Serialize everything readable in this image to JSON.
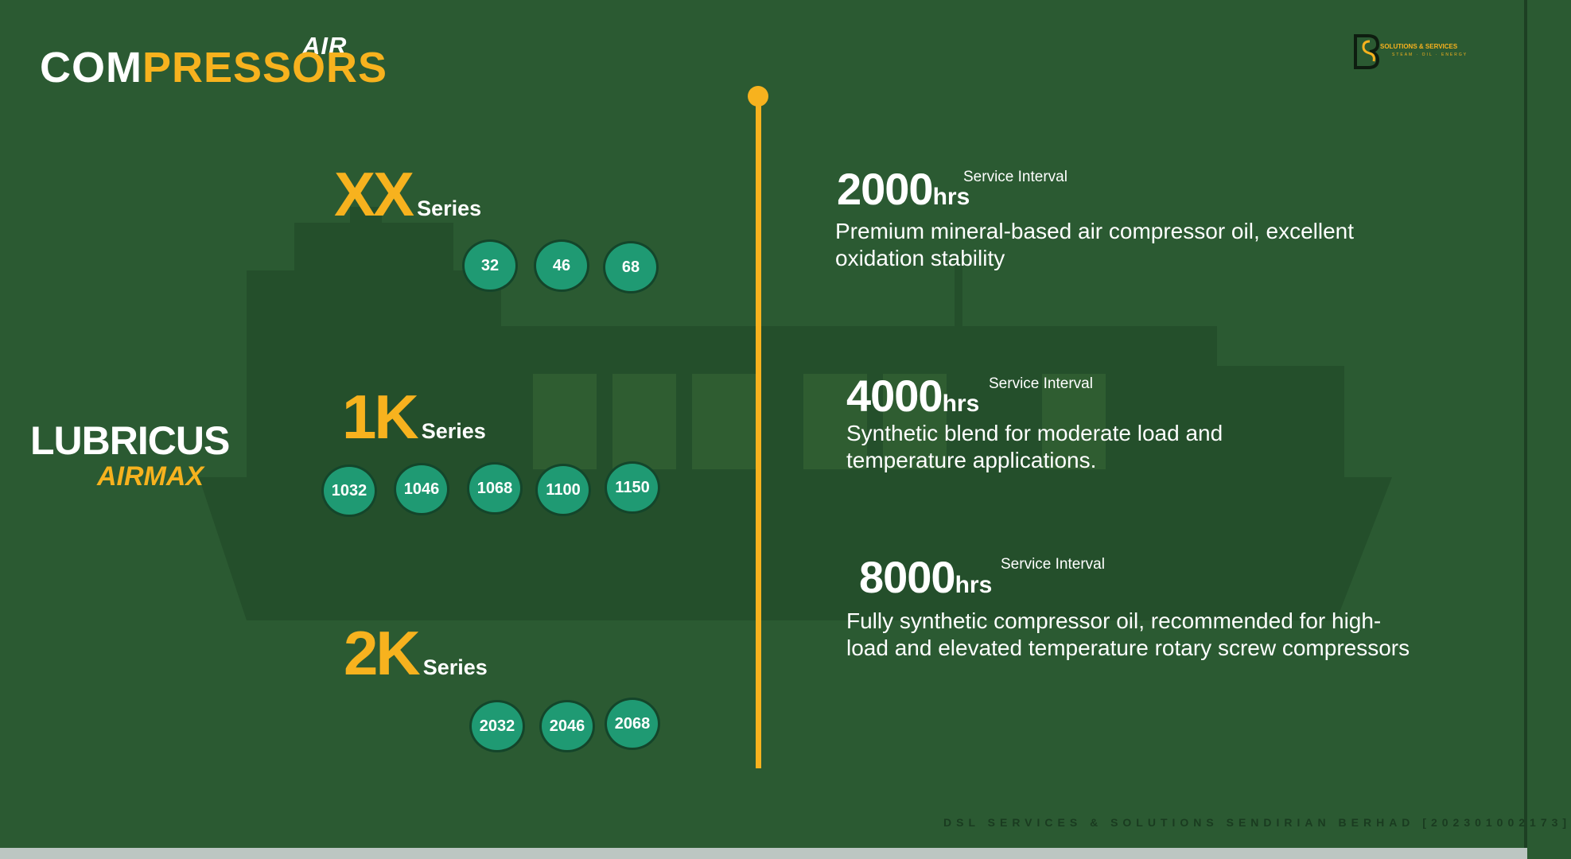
{
  "header": {
    "title_small": "AIR",
    "title_white": "COM",
    "title_yellow": "PRESSORS"
  },
  "logo": {
    "name": "SOLUTIONS & SERVICES",
    "tagline": "STEAM · OIL · ENERGY"
  },
  "brand": {
    "line1": "LUBRICUS",
    "line2": "AIRMAX"
  },
  "series": [
    {
      "name": "XX",
      "label": "Series",
      "grades": [
        "32",
        "46",
        "68"
      ]
    },
    {
      "name": "1K",
      "label": "Series",
      "grades": [
        "1032",
        "1046",
        "1068",
        "1100",
        "1150"
      ]
    },
    {
      "name": "2K",
      "label": "Series",
      "grades": [
        "2032",
        "2046",
        "2068"
      ]
    }
  ],
  "intervals": [
    {
      "hours": "2000",
      "unit": "hrs",
      "caption": "Service Interval",
      "description": "Premium mineral-based air compressor oil, excellent oxidation stability"
    },
    {
      "hours": "4000",
      "unit": "hrs",
      "caption": "Service Interval",
      "description": "Synthetic blend for moderate load and temperature applications."
    },
    {
      "hours": "8000",
      "unit": "hrs",
      "caption": "Service Interval",
      "description": "Fully synthetic compressor oil, recommended for high-load and elevated temperature rotary screw compressors"
    }
  ],
  "footer": "DSL SERVICES & SOLUTIONS SENDIRIAN BERHAD [202301002173]",
  "colors": {
    "background": "#2b5a32",
    "accent": "#f7b21e",
    "pill": "#1f9a73"
  }
}
